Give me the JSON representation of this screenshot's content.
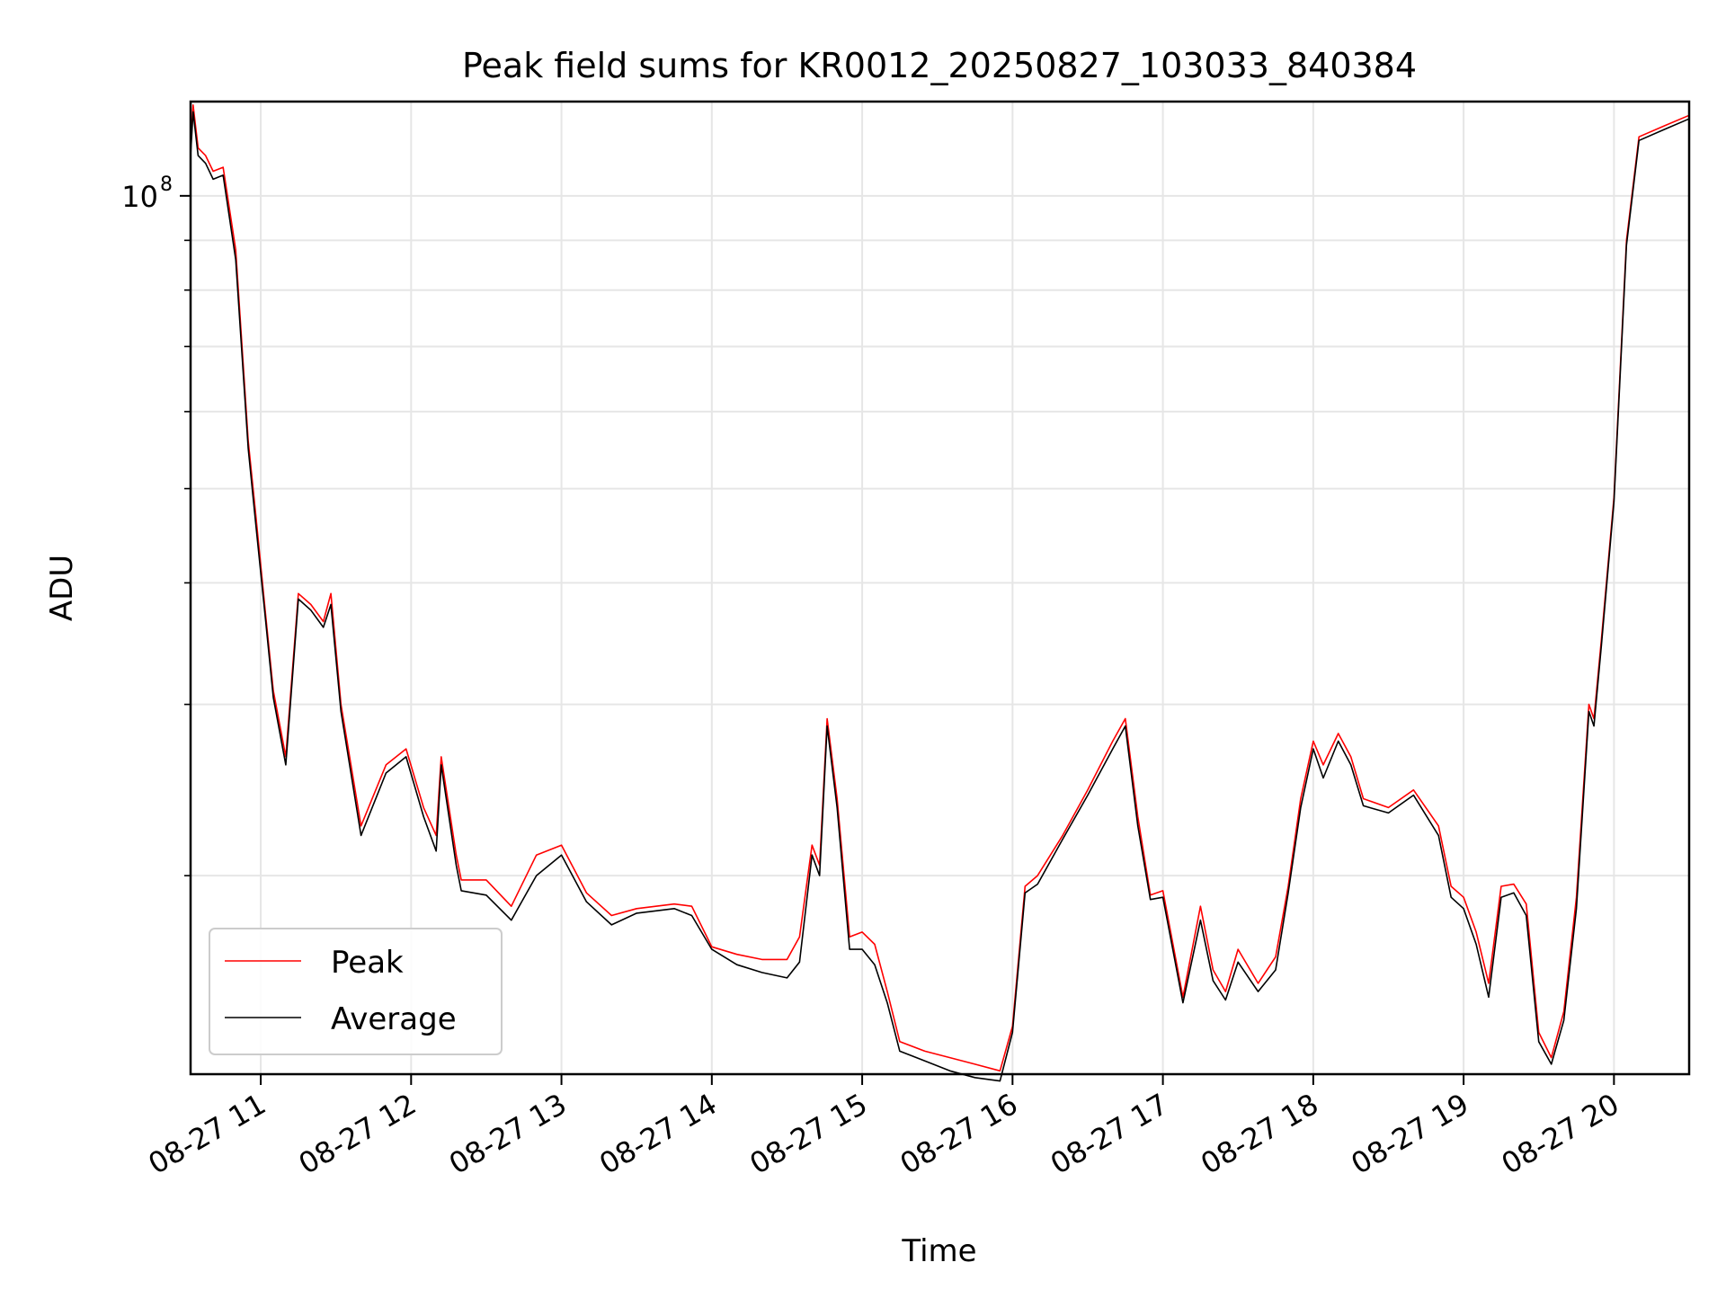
{
  "chart_data": {
    "type": "line",
    "title": "Peak field sums for KR0012_20250827_103033_840384",
    "xlabel": "Time",
    "ylabel": "ADU",
    "x_scale": "time",
    "y_scale": "log",
    "xlim": [
      "2025-08-27 10:32",
      "2025-08-27 20:30"
    ],
    "ylim": [
      12500000,
      125000000
    ],
    "x_ticks": [
      {
        "value": "2025-08-27 11:00",
        "label": "08-27 11"
      },
      {
        "value": "2025-08-27 12:00",
        "label": "08-27 12"
      },
      {
        "value": "2025-08-27 13:00",
        "label": "08-27 13"
      },
      {
        "value": "2025-08-27 14:00",
        "label": "08-27 14"
      },
      {
        "value": "2025-08-27 15:00",
        "label": "08-27 15"
      },
      {
        "value": "2025-08-27 16:00",
        "label": "08-27 16"
      },
      {
        "value": "2025-08-27 17:00",
        "label": "08-27 17"
      },
      {
        "value": "2025-08-27 18:00",
        "label": "08-27 18"
      },
      {
        "value": "2025-08-27 19:00",
        "label": "08-27 19"
      },
      {
        "value": "2025-08-27 20:00",
        "label": "08-27 20"
      }
    ],
    "y_major_ticks": [
      {
        "value": 100000000,
        "base": "10",
        "exponent": "8"
      }
    ],
    "y_minor_ticks": [
      20000000,
      30000000,
      40000000,
      50000000,
      60000000,
      70000000,
      80000000,
      90000000
    ],
    "grid": true,
    "legend": {
      "placement": "lower-left"
    },
    "colors": {
      "Peak": "#ff0000",
      "Average": "#000000",
      "grid": "#e6e6e6"
    },
    "series": [
      {
        "name": "Peak",
        "color": "#ff0000",
        "x": [
          "2025-08-27 10:32",
          "2025-08-27 10:33",
          "2025-08-27 10:35",
          "2025-08-27 10:38",
          "2025-08-27 10:41",
          "2025-08-27 10:45",
          "2025-08-27 10:50",
          "2025-08-27 10:55",
          "2025-08-27 10:58",
          "2025-08-27 11:02",
          "2025-08-27 11:05",
          "2025-08-27 11:10",
          "2025-08-27 11:15",
          "2025-08-27 11:20",
          "2025-08-27 11:25",
          "2025-08-27 11:28",
          "2025-08-27 11:32",
          "2025-08-27 11:40",
          "2025-08-27 11:50",
          "2025-08-27 11:58",
          "2025-08-27 12:05",
          "2025-08-27 12:10",
          "2025-08-27 12:12",
          "2025-08-27 12:18",
          "2025-08-27 12:20",
          "2025-08-27 12:30",
          "2025-08-27 12:40",
          "2025-08-27 12:50",
          "2025-08-27 13:00",
          "2025-08-27 13:10",
          "2025-08-27 13:20",
          "2025-08-27 13:30",
          "2025-08-27 13:45",
          "2025-08-27 13:52",
          "2025-08-27 14:00",
          "2025-08-27 14:10",
          "2025-08-27 14:20",
          "2025-08-27 14:30",
          "2025-08-27 14:35",
          "2025-08-27 14:40",
          "2025-08-27 14:43",
          "2025-08-27 14:46",
          "2025-08-27 14:50",
          "2025-08-27 14:55",
          "2025-08-27 15:00",
          "2025-08-27 15:05",
          "2025-08-27 15:10",
          "2025-08-27 15:15",
          "2025-08-27 15:25",
          "2025-08-27 15:35",
          "2025-08-27 15:45",
          "2025-08-27 15:55",
          "2025-08-27 16:00",
          "2025-08-27 16:05",
          "2025-08-27 16:10",
          "2025-08-27 16:20",
          "2025-08-27 16:30",
          "2025-08-27 16:40",
          "2025-08-27 16:45",
          "2025-08-27 16:50",
          "2025-08-27 16:55",
          "2025-08-27 17:00",
          "2025-08-27 17:08",
          "2025-08-27 17:15",
          "2025-08-27 17:20",
          "2025-08-27 17:25",
          "2025-08-27 17:30",
          "2025-08-27 17:38",
          "2025-08-27 17:45",
          "2025-08-27 17:50",
          "2025-08-27 17:55",
          "2025-08-27 18:00",
          "2025-08-27 18:04",
          "2025-08-27 18:10",
          "2025-08-27 18:15",
          "2025-08-27 18:20",
          "2025-08-27 18:30",
          "2025-08-27 18:40",
          "2025-08-27 18:50",
          "2025-08-27 18:55",
          "2025-08-27 19:00",
          "2025-08-27 19:05",
          "2025-08-27 19:10",
          "2025-08-27 19:15",
          "2025-08-27 19:20",
          "2025-08-27 19:25",
          "2025-08-27 19:30",
          "2025-08-27 19:35",
          "2025-08-27 19:40",
          "2025-08-27 19:45",
          "2025-08-27 19:50",
          "2025-08-27 19:52",
          "2025-08-27 19:55",
          "2025-08-27 20:00",
          "2025-08-27 20:05",
          "2025-08-27 20:10",
          "2025-08-27 20:20",
          "2025-08-27 20:30"
        ],
        "values": [
          112000000,
          124000000,
          112000000,
          110000000,
          106000000,
          107000000,
          88000000,
          56000000,
          47000000,
          37000000,
          31000000,
          26500000,
          39000000,
          38000000,
          36500000,
          39000000,
          30000000,
          22500000,
          26000000,
          27000000,
          23500000,
          22000000,
          26500000,
          21000000,
          19800000,
          19800000,
          18600000,
          21000000,
          21500000,
          19200000,
          18200000,
          18500000,
          18700000,
          18600000,
          16900000,
          16600000,
          16400000,
          16400000,
          17300000,
          21500000,
          20500000,
          29000000,
          24000000,
          17300000,
          17500000,
          17000000,
          15200000,
          13500000,
          13200000,
          13000000,
          12800000,
          12600000,
          14000000,
          19500000,
          20000000,
          22000000,
          24500000,
          27500000,
          29000000,
          23000000,
          19100000,
          19300000,
          15000000,
          18600000,
          16000000,
          15200000,
          16800000,
          15500000,
          16500000,
          19500000,
          24000000,
          27500000,
          26000000,
          28000000,
          26500000,
          24000000,
          23500000,
          24500000,
          22500000,
          19500000,
          19000000,
          17500000,
          15500000,
          19500000,
          19600000,
          18700000,
          13800000,
          13000000,
          14500000,
          19000000,
          30000000,
          29000000,
          35000000,
          49000000,
          90000000,
          115000000,
          118000000,
          121000000
        ]
      },
      {
        "name": "Average",
        "color": "#000000",
        "x": [
          "2025-08-27 10:32",
          "2025-08-27 10:33",
          "2025-08-27 10:35",
          "2025-08-27 10:38",
          "2025-08-27 10:41",
          "2025-08-27 10:45",
          "2025-08-27 10:50",
          "2025-08-27 10:55",
          "2025-08-27 10:58",
          "2025-08-27 11:02",
          "2025-08-27 11:05",
          "2025-08-27 11:10",
          "2025-08-27 11:15",
          "2025-08-27 11:20",
          "2025-08-27 11:25",
          "2025-08-27 11:28",
          "2025-08-27 11:32",
          "2025-08-27 11:40",
          "2025-08-27 11:50",
          "2025-08-27 11:58",
          "2025-08-27 12:05",
          "2025-08-27 12:10",
          "2025-08-27 12:12",
          "2025-08-27 12:18",
          "2025-08-27 12:20",
          "2025-08-27 12:30",
          "2025-08-27 12:40",
          "2025-08-27 12:50",
          "2025-08-27 13:00",
          "2025-08-27 13:10",
          "2025-08-27 13:20",
          "2025-08-27 13:30",
          "2025-08-27 13:45",
          "2025-08-27 13:52",
          "2025-08-27 14:00",
          "2025-08-27 14:10",
          "2025-08-27 14:20",
          "2025-08-27 14:30",
          "2025-08-27 14:35",
          "2025-08-27 14:40",
          "2025-08-27 14:43",
          "2025-08-27 14:46",
          "2025-08-27 14:50",
          "2025-08-27 14:55",
          "2025-08-27 15:00",
          "2025-08-27 15:05",
          "2025-08-27 15:10",
          "2025-08-27 15:15",
          "2025-08-27 15:25",
          "2025-08-27 15:35",
          "2025-08-27 15:45",
          "2025-08-27 15:55",
          "2025-08-27 16:00",
          "2025-08-27 16:05",
          "2025-08-27 16:10",
          "2025-08-27 16:20",
          "2025-08-27 16:30",
          "2025-08-27 16:40",
          "2025-08-27 16:45",
          "2025-08-27 16:50",
          "2025-08-27 16:55",
          "2025-08-27 17:00",
          "2025-08-27 17:08",
          "2025-08-27 17:15",
          "2025-08-27 17:20",
          "2025-08-27 17:25",
          "2025-08-27 17:30",
          "2025-08-27 17:38",
          "2025-08-27 17:45",
          "2025-08-27 17:50",
          "2025-08-27 17:55",
          "2025-08-27 18:00",
          "2025-08-27 18:04",
          "2025-08-27 18:10",
          "2025-08-27 18:15",
          "2025-08-27 18:20",
          "2025-08-27 18:30",
          "2025-08-27 18:40",
          "2025-08-27 18:50",
          "2025-08-27 18:55",
          "2025-08-27 19:00",
          "2025-08-27 19:05",
          "2025-08-27 19:10",
          "2025-08-27 19:15",
          "2025-08-27 19:20",
          "2025-08-27 19:25",
          "2025-08-27 19:30",
          "2025-08-27 19:35",
          "2025-08-27 19:40",
          "2025-08-27 19:45",
          "2025-08-27 19:50",
          "2025-08-27 19:52",
          "2025-08-27 19:55",
          "2025-08-27 20:00",
          "2025-08-27 20:05",
          "2025-08-27 20:10",
          "2025-08-27 20:20",
          "2025-08-27 20:30"
        ],
        "values": [
          110000000,
          122000000,
          110000000,
          108000000,
          104000000,
          105000000,
          86000000,
          55000000,
          46000000,
          36500000,
          30500000,
          26000000,
          38500000,
          37500000,
          36000000,
          38000000,
          29500000,
          22000000,
          25500000,
          26500000,
          23000000,
          21200000,
          26000000,
          20500000,
          19300000,
          19100000,
          18000000,
          20000000,
          21000000,
          18800000,
          17800000,
          18300000,
          18500000,
          18200000,
          16800000,
          16200000,
          15900000,
          15700000,
          16300000,
          21000000,
          20000000,
          28500000,
          23500000,
          16800000,
          16800000,
          16200000,
          14800000,
          13200000,
          12900000,
          12600000,
          12400000,
          12300000,
          13800000,
          19200000,
          19600000,
          21800000,
          24200000,
          27000000,
          28500000,
          22500000,
          18900000,
          19000000,
          14800000,
          18000000,
          15600000,
          14900000,
          16300000,
          15200000,
          16000000,
          19200000,
          23500000,
          27000000,
          25200000,
          27500000,
          26000000,
          23600000,
          23200000,
          24200000,
          22000000,
          19000000,
          18500000,
          17000000,
          15000000,
          19000000,
          19200000,
          18200000,
          13500000,
          12800000,
          14200000,
          18500000,
          29500000,
          28500000,
          34500000,
          48500000,
          89000000,
          114000000,
          117000000,
          120000000
        ]
      }
    ]
  }
}
